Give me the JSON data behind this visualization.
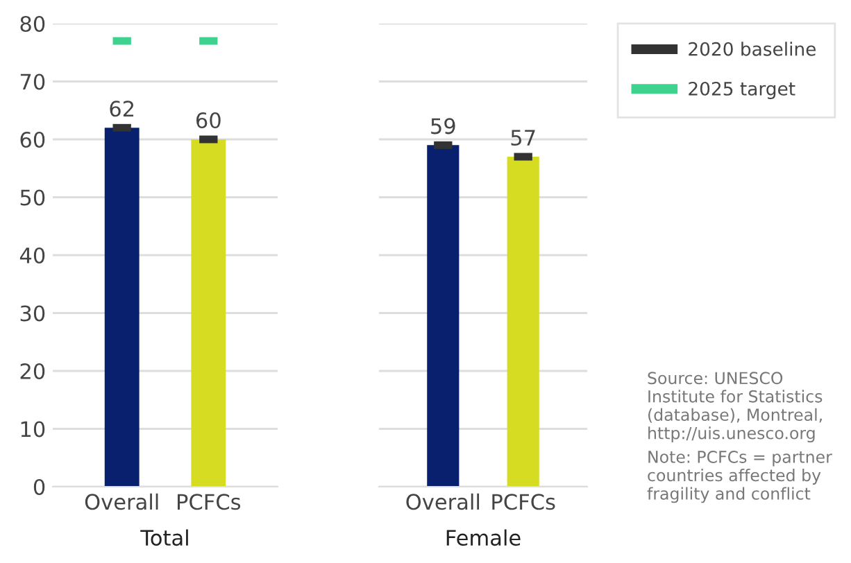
{
  "chart_data": [
    {
      "type": "bar",
      "xlabel": "Total",
      "categories": [
        "Overall",
        "PCFCs"
      ],
      "ylim": [
        0,
        80
      ],
      "yticks": [
        0,
        10,
        20,
        30,
        40,
        50,
        60,
        70,
        80
      ],
      "grid": "y",
      "legend": "right",
      "series": [
        {
          "values": [
            62,
            60
          ],
          "colors": [
            "#08206e",
            "#d6dc22"
          ],
          "value_labels": [
            "62",
            "60"
          ]
        },
        {
          "type": "scatter",
          "name": "2020 baseline",
          "color": "#333333",
          "values": [
            62,
            60
          ]
        },
        {
          "type": "scatter",
          "name": "2025 target",
          "color": "#3dd38f",
          "values": [
            77,
            77
          ]
        }
      ]
    },
    {
      "type": "bar",
      "xlabel": "Female",
      "categories": [
        "Overall",
        "PCFCs"
      ],
      "ylim": [
        0,
        80
      ],
      "yticks": [
        0,
        10,
        20,
        30,
        40,
        50,
        60,
        70,
        80
      ],
      "grid": "y",
      "tick_labels": "x",
      "series": [
        {
          "values": [
            59,
            57
          ],
          "colors": [
            "#08206e",
            "#d6dc22"
          ],
          "value_labels": [
            "59",
            "57"
          ]
        },
        {
          "type": "scatter",
          "color": "#333333",
          "values": [
            59,
            57
          ]
        }
      ],
      "annotations": [
        "Source: UNESCO Institute for Statistics (database), Montreal, http://uis.unesco.org",
        "Note: PCFCs = partner countries affected by fragility and conflict"
      ]
    }
  ]
}
